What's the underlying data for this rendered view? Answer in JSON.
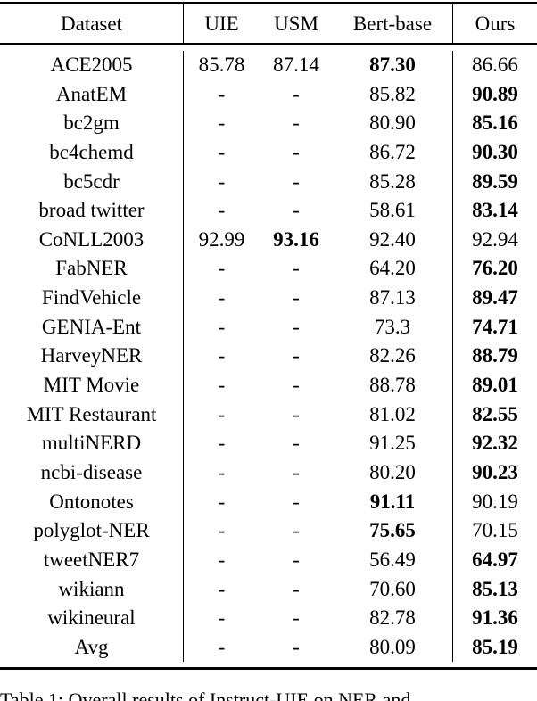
{
  "table": {
    "headers": [
      "Dataset",
      "UIE",
      "USM",
      "Bert-base",
      "Ours"
    ],
    "rows": [
      {
        "cells": [
          "ACE2005",
          "85.78",
          "87.14",
          "87.30",
          "86.66"
        ],
        "bold": [
          false,
          false,
          false,
          true,
          false
        ]
      },
      {
        "cells": [
          "AnatEM",
          "-",
          "-",
          "85.82",
          "90.89"
        ],
        "bold": [
          false,
          false,
          false,
          false,
          true
        ]
      },
      {
        "cells": [
          "bc2gm",
          "-",
          "-",
          "80.90",
          "85.16"
        ],
        "bold": [
          false,
          false,
          false,
          false,
          true
        ]
      },
      {
        "cells": [
          "bc4chemd",
          "-",
          "-",
          "86.72",
          "90.30"
        ],
        "bold": [
          false,
          false,
          false,
          false,
          true
        ]
      },
      {
        "cells": [
          "bc5cdr",
          "-",
          "-",
          "85.28",
          "89.59"
        ],
        "bold": [
          false,
          false,
          false,
          false,
          true
        ]
      },
      {
        "cells": [
          "broad twitter",
          "-",
          "-",
          "58.61",
          "83.14"
        ],
        "bold": [
          false,
          false,
          false,
          false,
          true
        ]
      },
      {
        "cells": [
          "CoNLL2003",
          "92.99",
          "93.16",
          "92.40",
          "92.94"
        ],
        "bold": [
          false,
          false,
          true,
          false,
          false
        ]
      },
      {
        "cells": [
          "FabNER",
          "-",
          "-",
          "64.20",
          "76.20"
        ],
        "bold": [
          false,
          false,
          false,
          false,
          true
        ]
      },
      {
        "cells": [
          "FindVehicle",
          "-",
          "-",
          "87.13",
          "89.47"
        ],
        "bold": [
          false,
          false,
          false,
          false,
          true
        ]
      },
      {
        "cells": [
          "GENIA-Ent",
          "-",
          "-",
          "73.3",
          "74.71"
        ],
        "bold": [
          false,
          false,
          false,
          false,
          true
        ]
      },
      {
        "cells": [
          "HarveyNER",
          "-",
          "-",
          "82.26",
          "88.79"
        ],
        "bold": [
          false,
          false,
          false,
          false,
          true
        ]
      },
      {
        "cells": [
          "MIT Movie",
          "-",
          "-",
          "88.78",
          "89.01"
        ],
        "bold": [
          false,
          false,
          false,
          false,
          true
        ]
      },
      {
        "cells": [
          "MIT Restaurant",
          "-",
          "-",
          "81.02",
          "82.55"
        ],
        "bold": [
          false,
          false,
          false,
          false,
          true
        ]
      },
      {
        "cells": [
          "multiNERD",
          "-",
          "-",
          "91.25",
          "92.32"
        ],
        "bold": [
          false,
          false,
          false,
          false,
          true
        ]
      },
      {
        "cells": [
          "ncbi-disease",
          "-",
          "-",
          "80.20",
          "90.23"
        ],
        "bold": [
          false,
          false,
          false,
          false,
          true
        ]
      },
      {
        "cells": [
          "Ontonotes",
          "-",
          "-",
          "91.11",
          "90.19"
        ],
        "bold": [
          false,
          false,
          false,
          true,
          false
        ]
      },
      {
        "cells": [
          "polyglot-NER",
          "-",
          "-",
          "75.65",
          "70.15"
        ],
        "bold": [
          false,
          false,
          false,
          true,
          false
        ]
      },
      {
        "cells": [
          "tweetNER7",
          "-",
          "-",
          "56.49",
          "64.97"
        ],
        "bold": [
          false,
          false,
          false,
          false,
          true
        ]
      },
      {
        "cells": [
          "wikiann",
          "-",
          "-",
          "70.60",
          "85.13"
        ],
        "bold": [
          false,
          false,
          false,
          false,
          true
        ]
      },
      {
        "cells": [
          "wikineural",
          "-",
          "-",
          "82.78",
          "91.36"
        ],
        "bold": [
          false,
          false,
          false,
          false,
          true
        ]
      },
      {
        "cells": [
          "Avg",
          "-",
          "-",
          "80.09",
          "85.19"
        ],
        "bold": [
          false,
          false,
          false,
          false,
          true
        ]
      }
    ]
  },
  "caption": {
    "text": "Table 1: Overall results of Instruct-UIE on NER and"
  }
}
